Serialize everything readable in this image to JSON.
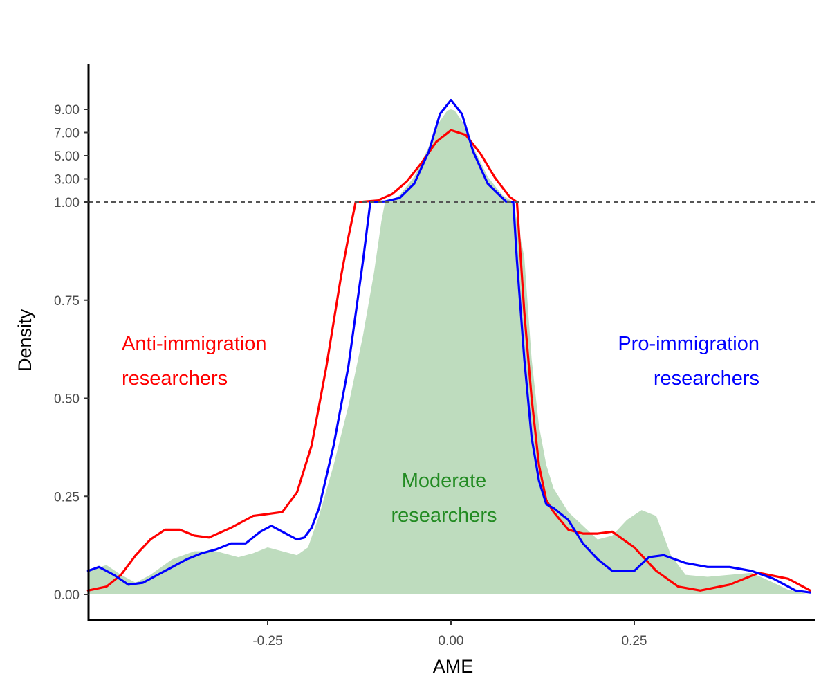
{
  "chart_data": {
    "type": "area",
    "title": "",
    "xlabel": "AME",
    "ylabel": "Density",
    "xlim": [
      -0.49,
      0.49
    ],
    "x_ticks": [
      {
        "value": -0.25,
        "label": "-0.25"
      },
      {
        "value": 0.0,
        "label": "0.00"
      },
      {
        "value": 0.25,
        "label": "0.25"
      }
    ],
    "y_scale": "piecewise: linear 0 to 1, compressed above 1",
    "y_ticks_lower": [
      {
        "value": 0.0,
        "label": "0.00"
      },
      {
        "value": 0.25,
        "label": "0.25"
      },
      {
        "value": 0.5,
        "label": "0.50"
      },
      {
        "value": 0.75,
        "label": "0.75"
      },
      {
        "value": 1.0,
        "label": "1.00"
      }
    ],
    "y_ticks_upper": [
      {
        "value": 3.0,
        "label": "3.00"
      },
      {
        "value": 5.0,
        "label": "5.00"
      },
      {
        "value": 7.0,
        "label": "7.00"
      },
      {
        "value": 9.0,
        "label": "9.00"
      }
    ],
    "reference_line": {
      "y": 1.0,
      "style": "dashed"
    },
    "grid": false,
    "series": [
      {
        "color": "#bedcbe",
        "style": "filled-area",
        "x": [
          -0.495,
          -0.47,
          -0.45,
          -0.43,
          -0.41,
          -0.38,
          -0.35,
          -0.32,
          -0.29,
          -0.27,
          -0.25,
          -0.23,
          -0.21,
          -0.195,
          -0.18,
          -0.16,
          -0.14,
          -0.12,
          -0.105,
          -0.095,
          -0.09,
          -0.085,
          -0.07,
          -0.05,
          -0.03,
          -0.015,
          -0.005,
          0.0,
          0.005,
          0.015,
          0.03,
          0.05,
          0.07,
          0.085,
          0.1,
          0.11,
          0.12,
          0.13,
          0.14,
          0.15,
          0.16,
          0.18,
          0.2,
          0.22,
          0.24,
          0.26,
          0.28,
          0.3,
          0.32,
          0.35,
          0.38,
          0.41,
          0.44,
          0.46,
          0.49
        ],
        "y": [
          0.06,
          0.075,
          0.05,
          0.03,
          0.05,
          0.09,
          0.11,
          0.11,
          0.095,
          0.105,
          0.12,
          0.11,
          0.1,
          0.12,
          0.2,
          0.33,
          0.48,
          0.66,
          0.82,
          0.95,
          1.0,
          1.01,
          1.6,
          3.2,
          5.8,
          8.0,
          8.9,
          9.0,
          8.9,
          8.0,
          5.8,
          3.2,
          1.6,
          1.01,
          0.86,
          0.6,
          0.43,
          0.33,
          0.27,
          0.24,
          0.21,
          0.175,
          0.14,
          0.15,
          0.19,
          0.215,
          0.2,
          0.1,
          0.05,
          0.045,
          0.05,
          0.055,
          0.03,
          0.012,
          0.0
        ]
      },
      {
        "color": "#ff0000",
        "style": "line",
        "x": [
          -0.495,
          -0.47,
          -0.45,
          -0.43,
          -0.41,
          -0.39,
          -0.37,
          -0.35,
          -0.33,
          -0.3,
          -0.27,
          -0.25,
          -0.23,
          -0.21,
          -0.19,
          -0.17,
          -0.15,
          -0.14,
          -0.13,
          -0.12,
          -0.1,
          -0.08,
          -0.06,
          -0.04,
          -0.02,
          0.0,
          0.02,
          0.04,
          0.06,
          0.08,
          0.09,
          0.1,
          0.11,
          0.12,
          0.13,
          0.14,
          0.16,
          0.18,
          0.2,
          0.22,
          0.25,
          0.28,
          0.31,
          0.34,
          0.38,
          0.42,
          0.46,
          0.49
        ],
        "y": [
          0.01,
          0.02,
          0.05,
          0.1,
          0.14,
          0.165,
          0.165,
          0.15,
          0.145,
          0.17,
          0.2,
          0.205,
          0.21,
          0.26,
          0.38,
          0.58,
          0.81,
          0.91,
          1.0,
          1.03,
          1.14,
          1.7,
          2.8,
          4.4,
          6.2,
          7.2,
          6.8,
          5.2,
          3.1,
          1.45,
          1.0,
          0.72,
          0.5,
          0.33,
          0.24,
          0.21,
          0.165,
          0.155,
          0.155,
          0.16,
          0.12,
          0.06,
          0.02,
          0.01,
          0.025,
          0.055,
          0.04,
          0.01
        ]
      },
      {
        "color": "#0000ff",
        "style": "line",
        "x": [
          -0.495,
          -0.48,
          -0.46,
          -0.44,
          -0.42,
          -0.4,
          -0.38,
          -0.36,
          -0.34,
          -0.32,
          -0.3,
          -0.28,
          -0.26,
          -0.245,
          -0.23,
          -0.21,
          -0.2,
          -0.19,
          -0.18,
          -0.16,
          -0.14,
          -0.12,
          -0.11,
          -0.1,
          -0.09,
          -0.07,
          -0.05,
          -0.03,
          -0.015,
          0.0,
          0.015,
          0.03,
          0.05,
          0.075,
          0.085,
          0.09,
          0.1,
          0.11,
          0.12,
          0.13,
          0.14,
          0.16,
          0.18,
          0.2,
          0.22,
          0.25,
          0.27,
          0.29,
          0.32,
          0.35,
          0.38,
          0.41,
          0.44,
          0.47,
          0.49
        ],
        "y": [
          0.06,
          0.07,
          0.05,
          0.025,
          0.03,
          0.05,
          0.07,
          0.09,
          0.105,
          0.115,
          0.13,
          0.13,
          0.16,
          0.175,
          0.16,
          0.14,
          0.145,
          0.17,
          0.22,
          0.38,
          0.58,
          0.85,
          1.0,
          1.02,
          1.05,
          1.35,
          2.6,
          5.4,
          8.6,
          9.8,
          8.6,
          5.4,
          2.6,
          1.05,
          1.0,
          0.85,
          0.6,
          0.4,
          0.29,
          0.23,
          0.22,
          0.19,
          0.13,
          0.09,
          0.06,
          0.06,
          0.095,
          0.1,
          0.08,
          0.07,
          0.07,
          0.06,
          0.04,
          0.01,
          0.005
        ]
      }
    ],
    "annotations": [
      {
        "lines": [
          "Anti-immigration",
          "researchers"
        ],
        "color": "#ff0000",
        "anchor": "left"
      },
      {
        "lines": [
          "Pro-immigration",
          "researchers"
        ],
        "color": "#0000ff",
        "anchor": "right"
      },
      {
        "lines": [
          "Moderate",
          "researchers"
        ],
        "color": "#228b22",
        "anchor": "middle"
      }
    ]
  }
}
